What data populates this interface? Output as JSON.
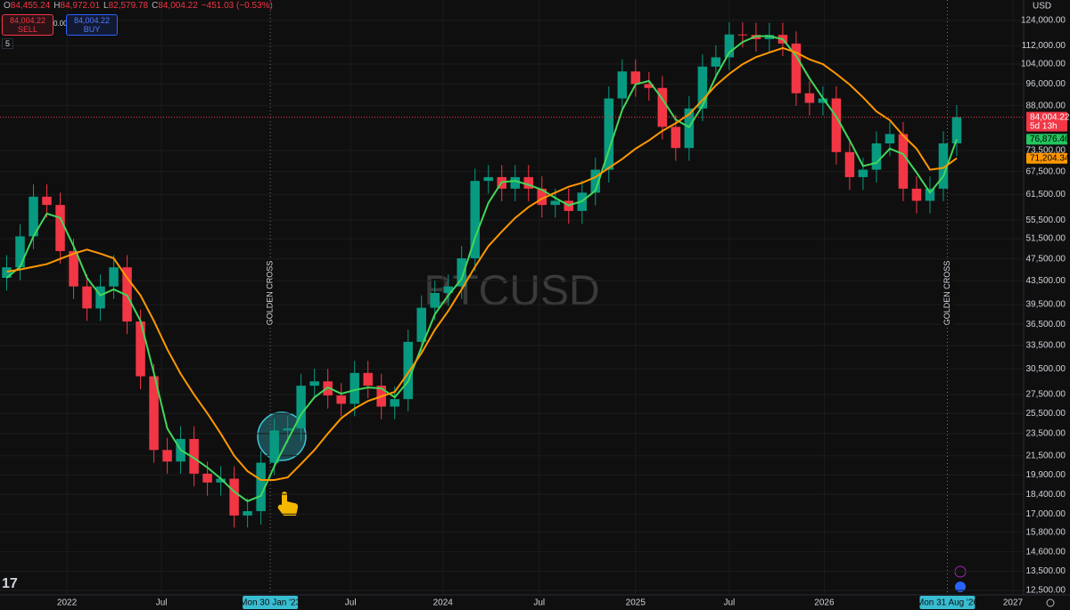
{
  "header": {
    "fields": [
      [
        "O",
        "84,455.24"
      ],
      [
        "H",
        "84,972.01"
      ],
      [
        "L",
        "82,579.78"
      ],
      [
        "C",
        "84,004.22"
      ]
    ],
    "change": "−451.03 (−0.53%)",
    "sell": {
      "price": "84,004.22",
      "label": "SELL"
    },
    "spread": "0.00",
    "buy": {
      "price": "84,004.22",
      "label": "BUY"
    },
    "interval": "5"
  },
  "chart_data": {
    "type": "candlestick",
    "title": "BTCUSD",
    "currency": "USD",
    "log_scale": true,
    "grid": true,
    "up_color": "#089981",
    "down_color": "#f23645",
    "categories": [
      null,
      null,
      null,
      null,
      null,
      null,
      null,
      null,
      null,
      null,
      null,
      null,
      null,
      null,
      null,
      null,
      null,
      null,
      null,
      null,
      null,
      null,
      null,
      null,
      null,
      null,
      null,
      null,
      null,
      null,
      null,
      null,
      null,
      null,
      null,
      null,
      null,
      null,
      null,
      null,
      null,
      null,
      null,
      null,
      null,
      null,
      null,
      null,
      null,
      null,
      null,
      null,
      null,
      null,
      null,
      null,
      null,
      null,
      null,
      null,
      null,
      null,
      null,
      null,
      null,
      null,
      null,
      null,
      null,
      null,
      null,
      null
    ],
    "open": [
      44000,
      45900,
      52000,
      61000,
      59000,
      49000,
      42500,
      38900,
      42500,
      45900,
      36900,
      29600,
      22000,
      21000,
      23000,
      20000,
      19300,
      19600,
      16900,
      17200,
      20900,
      23800,
      24000,
      28500,
      29000,
      27400,
      26500,
      30000,
      28500,
      26200,
      27000,
      34000,
      39000,
      41400,
      42500,
      47600,
      65000,
      66000,
      63000,
      66000,
      63000,
      59000,
      60000,
      57600,
      62000,
      68000,
      90600,
      101000,
      96000,
      94500,
      80800,
      74200,
      87000,
      103000,
      106900,
      117200,
      117000,
      115000,
      117000,
      113000,
      92500,
      89000,
      90600,
      73000,
      66000,
      68000,
      75600,
      78500,
      63000,
      60000,
      63000,
      75600
    ],
    "high": [
      48200,
      54600,
      64100,
      64100,
      62000,
      51500,
      44600,
      44600,
      48200,
      48200,
      38700,
      31100,
      23100,
      24200,
      24200,
      21000,
      20600,
      20600,
      18100,
      21900,
      25000,
      25200,
      29900,
      30500,
      30500,
      28800,
      31500,
      31500,
      29900,
      28400,
      35700,
      41000,
      43500,
      44600,
      50000,
      68300,
      69300,
      69300,
      69300,
      69300,
      66200,
      63000,
      63000,
      65100,
      71400,
      95100,
      106100,
      106100,
      100800,
      99200,
      84800,
      91400,
      108200,
      112200,
      123100,
      123100,
      122900,
      122900,
      122900,
      118700,
      97100,
      95100,
      95100,
      76700,
      71400,
      79400,
      82400,
      82400,
      66200,
      66200,
      79400,
      88200
    ],
    "low": [
      41800,
      43600,
      49400,
      56100,
      46600,
      40400,
      37000,
      37000,
      40400,
      35100,
      28100,
      20900,
      20000,
      20000,
      19000,
      18300,
      18300,
      16100,
      16100,
      16300,
      19900,
      22600,
      22800,
      27100,
      26000,
      25200,
      25200,
      27100,
      24900,
      24900,
      25700,
      32300,
      37100,
      39300,
      40400,
      45200,
      61800,
      59900,
      59900,
      59900,
      56100,
      56100,
      54700,
      54700,
      58900,
      64600,
      86100,
      91200,
      89800,
      76800,
      70500,
      70500,
      82700,
      97900,
      101600,
      111200,
      109300,
      109300,
      107400,
      87900,
      84600,
      84600,
      69400,
      62700,
      62700,
      64600,
      71800,
      59900,
      57000,
      57000,
      59900,
      71800
    ],
    "close": [
      45900,
      52000,
      61000,
      59000,
      49000,
      42500,
      38900,
      42500,
      45900,
      36900,
      29600,
      22000,
      21000,
      23000,
      20000,
      19300,
      19600,
      16900,
      17200,
      20900,
      23800,
      24000,
      28500,
      29000,
      27400,
      26500,
      30000,
      28500,
      26200,
      27000,
      34000,
      39000,
      41400,
      42500,
      47600,
      65000,
      66000,
      63000,
      66000,
      63000,
      59000,
      60000,
      57600,
      62000,
      68000,
      90600,
      101000,
      96000,
      94500,
      80800,
      74200,
      87000,
      103000,
      106900,
      117200,
      117000,
      115000,
      117000,
      113000,
      92500,
      89000,
      90600,
      73000,
      66000,
      68000,
      75600,
      78500,
      63000,
      60000,
      63000,
      75600,
      84004.22
    ],
    "series": [
      {
        "color": "#43d65a",
        "values": [
          44000,
          46000,
          52000,
          57000,
          56000,
          50000,
          44000,
          41000,
          42000,
          41000,
          37000,
          30000,
          24000,
          22000,
          21300,
          20500,
          19600,
          18600,
          17900,
          18300,
          20600,
          22900,
          25400,
          27200,
          28300,
          27600,
          28000,
          28300,
          28200,
          27200,
          29000,
          33300,
          38000,
          41000,
          43800,
          51700,
          59500,
          64700,
          65000,
          64000,
          62700,
          60700,
          58900,
          59900,
          62500,
          73500,
          86500,
          95900,
          97200,
          90400,
          83200,
          80700,
          88000,
          99000,
          109000,
          113700,
          116400,
          116400,
          115000,
          107500,
          98200,
          90700,
          84200,
          76500,
          69000,
          69900,
          74000,
          72400,
          67200,
          62000,
          66200,
          76876.46
        ]
      },
      {
        "color": "#ff9800",
        "values": [
          45100,
          45500,
          46000,
          46500,
          47500,
          48500,
          49300,
          48500,
          47600,
          44000,
          41000,
          37000,
          33000,
          29900,
          27500,
          25500,
          23500,
          21500,
          20200,
          19500,
          19500,
          19700,
          20800,
          22000,
          23500,
          25000,
          26000,
          26800,
          27300,
          27800,
          30000,
          32500,
          35700,
          38500,
          42000,
          46000,
          50000,
          53000,
          56000,
          58500,
          60500,
          62000,
          63500,
          64500,
          66000,
          68500,
          71000,
          74000,
          76500,
          79500,
          82000,
          85000,
          90000,
          95500,
          100000,
          104000,
          107000,
          109000,
          111000,
          109000,
          106000,
          104000,
          100000,
          95800,
          91000,
          86000,
          83000,
          78000,
          74000,
          68000,
          68500,
          71204.34
        ]
      }
    ],
    "price_labels": [
      {
        "value": 84004.22,
        "label": "84,004.22",
        "sub": "5d 13h",
        "color": "#f23645"
      },
      {
        "value": 76876.46,
        "label": "76,876.46",
        "color": "#22c55e"
      },
      {
        "value": 71204.34,
        "label": "71,204.34",
        "color": "#ff9800"
      }
    ],
    "annotations": [
      {
        "text": "GOLDEN CROSS",
        "x": 19.7
      },
      {
        "text": "GOLDEN CROSS",
        "x": 70.3
      }
    ],
    "xlim": [
      -0.5,
      76.0
    ],
    "xticks": [
      {
        "value": 4.5,
        "label": "2022"
      },
      {
        "value": 11.57,
        "label": "Jul"
      },
      {
        "value": 19.7,
        "label": "Mon 30 Jan '23"
      },
      {
        "value": 25.7,
        "label": "Jul"
      },
      {
        "value": 32.6,
        "label": "2024"
      },
      {
        "value": 39.8,
        "label": "Jul"
      },
      {
        "value": 47,
        "label": "2025"
      },
      {
        "value": 54,
        "label": "Jul"
      },
      {
        "value": 61.1,
        "label": "2026"
      },
      {
        "value": 70.3,
        "label": "Mon 31 Aug '26"
      },
      {
        "value": 75.2,
        "label": "2027"
      }
    ],
    "ylim": [
      12500,
      124000
    ],
    "yticks": [
      {
        "value": 124000,
        "label": "124,000.00"
      },
      {
        "value": 112000,
        "label": "112,000.00"
      },
      {
        "value": 104000,
        "label": "104,000.00"
      },
      {
        "value": 96000,
        "label": "96,000.00"
      },
      {
        "value": 88000,
        "label": "88,000.00"
      },
      {
        "value": 73500,
        "label": "73,500.00"
      },
      {
        "value": 67500,
        "label": "67,500.00"
      },
      {
        "value": 61500,
        "label": "61,500.00"
      },
      {
        "value": 55500,
        "label": "55,500.00"
      },
      {
        "value": 51500,
        "label": "51,500.00"
      },
      {
        "value": 47500,
        "label": "47,500.00"
      },
      {
        "value": 43500,
        "label": "43,500.00"
      },
      {
        "value": 39500,
        "label": "39,500.00"
      },
      {
        "value": 36500,
        "label": "36,500.00"
      },
      {
        "value": 33500,
        "label": "33,500.00"
      },
      {
        "value": 30500,
        "label": "30,500.00"
      },
      {
        "value": 27500,
        "label": "27,500.00"
      },
      {
        "value": 25500,
        "label": "25,500.00"
      },
      {
        "value": 23500,
        "label": "23,500.00"
      },
      {
        "value": 21500,
        "label": "21,500.00"
      },
      {
        "value": 19900,
        "label": "19,900.00"
      },
      {
        "value": 18400,
        "label": "18,400.00"
      },
      {
        "value": 17000,
        "label": "17,000.00"
      },
      {
        "value": 15800,
        "label": "15,800.00"
      },
      {
        "value": 14600,
        "label": "14,600.00"
      },
      {
        "value": 13500,
        "label": "13,500.00"
      },
      {
        "value": 12500,
        "label": "12,500.00"
      }
    ]
  }
}
